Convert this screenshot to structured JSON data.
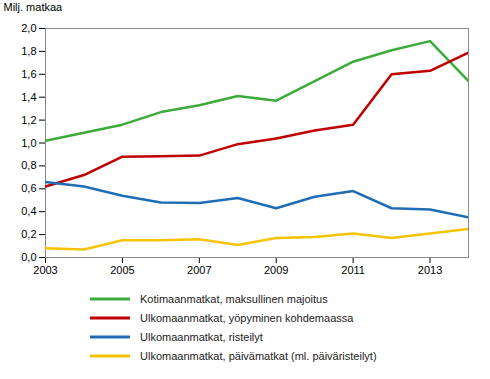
{
  "chart_data": {
    "type": "line",
    "y_label": "Milj. matkaa",
    "x": [
      2003,
      2004,
      2005,
      2006,
      2007,
      2008,
      2009,
      2010,
      2011,
      2012,
      2013,
      2014
    ],
    "xlim": [
      2003,
      2014
    ],
    "xticks": [
      2003,
      2005,
      2007,
      2009,
      2011,
      2013
    ],
    "ylim": [
      0,
      2
    ],
    "yticks": [
      {
        "value": 0,
        "label": "0,0"
      },
      {
        "value": 0.2,
        "label": "0,2"
      },
      {
        "value": 0.4,
        "label": "0,4"
      },
      {
        "value": 0.6,
        "label": "0,6"
      },
      {
        "value": 0.8,
        "label": "0,8"
      },
      {
        "value": 1.0,
        "label": "1,0"
      },
      {
        "value": 1.2,
        "label": "1,2"
      },
      {
        "value": 1.4,
        "label": "1,4"
      },
      {
        "value": 1.6,
        "label": "1,6"
      },
      {
        "value": 1.8,
        "label": "1,8"
      },
      {
        "value": 2.0,
        "label": "2,0"
      }
    ],
    "grid": false,
    "legend": "bottom",
    "series": [
      {
        "name": "Kotimaanmatkat, maksullinen majoitus",
        "color": "#3cab3c",
        "values": [
          1.02,
          1.09,
          1.16,
          1.27,
          1.33,
          1.41,
          1.37,
          1.54,
          1.71,
          1.81,
          1.89,
          1.54
        ]
      },
      {
        "name": "Ulkomaanmatkat, yöpyminen kohdemaassa",
        "color": "#c00000",
        "values": [
          0.62,
          0.72,
          0.88,
          0.885,
          0.89,
          0.99,
          1.04,
          1.11,
          1.16,
          1.6,
          1.63,
          1.79
        ]
      },
      {
        "name": "Ulkomaanmatkat, risteilyt",
        "color": "#1f6db5",
        "values": [
          0.66,
          0.62,
          0.54,
          0.48,
          0.475,
          0.52,
          0.43,
          0.53,
          0.58,
          0.43,
          0.42,
          0.35
        ]
      },
      {
        "name": "Ulkomaanmatkat, päivämatkat (ml. päiväristeilyt)",
        "color": "#f5c400",
        "values": [
          0.08,
          0.07,
          0.15,
          0.15,
          0.16,
          0.11,
          0.17,
          0.18,
          0.21,
          0.17,
          0.21,
          0.25
        ]
      }
    ]
  }
}
